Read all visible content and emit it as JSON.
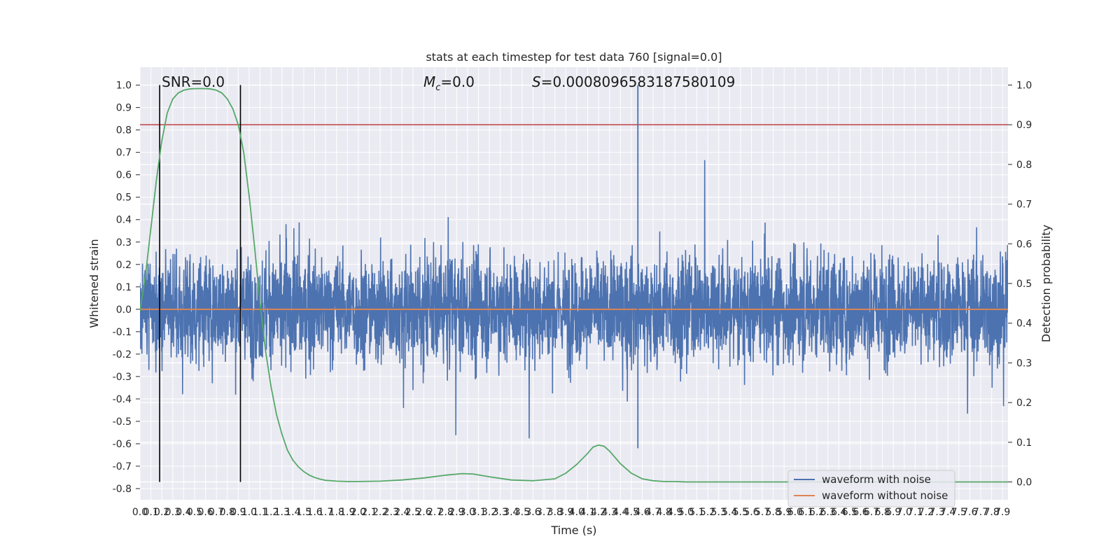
{
  "chart_data": {
    "type": "line",
    "title": "stats at each timestep for test data 760 [signal=0.0]",
    "xlabel": "Time (s)",
    "ylabel": "Whitened strain",
    "y2label": "Detection probability",
    "xlim": [
      0.0,
      7.95
    ],
    "ylim": [
      -0.85,
      1.08
    ],
    "y2lim": [
      -0.045,
      1.045
    ],
    "x_ticks": [
      "0.0",
      "0.1",
      "0.2",
      "0.3",
      "0.4",
      "0.5",
      "0.6",
      "0.7",
      "0.8",
      "0.9",
      "1.0",
      "1.1",
      "1.2",
      "1.3",
      "1.4",
      "1.5",
      "1.6",
      "1.7",
      "1.8",
      "1.9",
      "2.0",
      "2.1",
      "2.2",
      "2.3",
      "2.4",
      "2.5",
      "2.6",
      "2.7",
      "2.8",
      "2.9",
      "3.0",
      "3.1",
      "3.2",
      "3.3",
      "3.4",
      "3.5",
      "3.6",
      "3.7",
      "3.8",
      "3.9",
      "4.0",
      "4.1",
      "4.2",
      "4.3",
      "4.4",
      "4.5",
      "4.6",
      "4.7",
      "4.8",
      "4.9",
      "5.0",
      "5.1",
      "5.2",
      "5.3",
      "5.4",
      "5.5",
      "5.6",
      "5.7",
      "5.8",
      "5.9",
      "6.0",
      "6.1",
      "6.2",
      "6.3",
      "6.4",
      "6.5",
      "6.6",
      "6.7",
      "6.8",
      "6.9",
      "7.0",
      "7.1",
      "7.2",
      "7.3",
      "7.4",
      "7.5",
      "7.6",
      "7.7",
      "7.8",
      "7.9"
    ],
    "y_ticks": [
      "-0.8",
      "-0.7",
      "-0.6",
      "-0.5",
      "-0.4",
      "-0.3",
      "-0.2",
      "-0.1",
      "0.0",
      "0.1",
      "0.2",
      "0.3",
      "0.4",
      "0.5",
      "0.6",
      "0.7",
      "0.8",
      "0.9",
      "1.0"
    ],
    "y2_ticks": [
      "0.0",
      "0.1",
      "0.2",
      "0.3",
      "0.4",
      "0.5",
      "0.6",
      "0.7",
      "0.8",
      "0.9",
      "1.0"
    ],
    "annotations": {
      "snr": "SNR=0.0",
      "mc_symbol": "M",
      "mc_subscript": "c",
      "mc_value": "=0.0",
      "s_symbol": "S",
      "s_value": "=0.0008096583187580109"
    },
    "threshold": 0.9,
    "window_lines_x": [
      0.18,
      0.92
    ],
    "spike_x": 4.56,
    "legend": {
      "location": "lower right",
      "entries": [
        "waveform with noise",
        "waveform without noise"
      ]
    },
    "colors": {
      "noise": "#4c72b0",
      "clean": "#dd8452",
      "probability": "#55a868",
      "threshold": "#c44e52",
      "window": "#000000",
      "background": "#eaeaf2",
      "grid": "#ffffff"
    },
    "series": [
      {
        "name": "waveform with noise",
        "axis": "left",
        "description": "gaussian-like noise, roughly within -0.5..0.5 with spikes up to 1.0"
      },
      {
        "name": "waveform without noise",
        "axis": "left",
        "x": [
          0.0,
          7.95
        ],
        "y": [
          0.0,
          0.0
        ]
      },
      {
        "name": "detection probability",
        "axis": "right",
        "x": [
          0.0,
          0.05,
          0.1,
          0.15,
          0.2,
          0.25,
          0.3,
          0.35,
          0.4,
          0.45,
          0.5,
          0.55,
          0.6,
          0.65,
          0.7,
          0.75,
          0.8,
          0.85,
          0.9,
          0.95,
          1.0,
          1.05,
          1.1,
          1.15,
          1.2,
          1.25,
          1.3,
          1.35,
          1.4,
          1.45,
          1.5,
          1.55,
          1.6,
          1.65,
          1.7,
          1.8,
          1.9,
          2.0,
          2.2,
          2.4,
          2.6,
          2.8,
          2.95,
          3.05,
          3.2,
          3.4,
          3.6,
          3.8,
          3.9,
          4.0,
          4.1,
          4.15,
          4.2,
          4.25,
          4.3,
          4.4,
          4.5,
          4.6,
          4.7,
          4.8,
          4.9,
          5.0,
          6.0,
          7.0,
          7.95
        ],
        "y": [
          0.43,
          0.52,
          0.64,
          0.76,
          0.86,
          0.93,
          0.965,
          0.98,
          0.987,
          0.99,
          0.991,
          0.991,
          0.991,
          0.99,
          0.987,
          0.98,
          0.965,
          0.94,
          0.9,
          0.83,
          0.72,
          0.59,
          0.45,
          0.33,
          0.24,
          0.17,
          0.12,
          0.08,
          0.055,
          0.038,
          0.026,
          0.017,
          0.011,
          0.007,
          0.004,
          0.002,
          0.001,
          0.001,
          0.002,
          0.005,
          0.01,
          0.017,
          0.021,
          0.02,
          0.013,
          0.005,
          0.003,
          0.008,
          0.022,
          0.044,
          0.072,
          0.088,
          0.093,
          0.09,
          0.078,
          0.046,
          0.022,
          0.008,
          0.003,
          0.001,
          0.001,
          0.0,
          0.0,
          0.0,
          0.0
        ]
      }
    ]
  }
}
